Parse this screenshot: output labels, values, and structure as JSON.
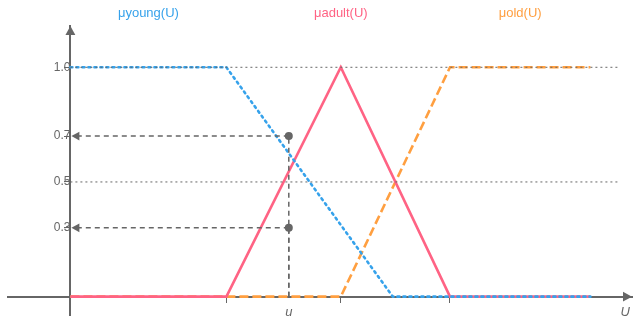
{
  "chart_data": {
    "type": "line",
    "xlabel": "U",
    "xlim": [
      -0.12,
      1.08
    ],
    "ylim": [
      -0.08,
      1.18
    ],
    "xticks": [
      0.3,
      0.52,
      0.73
    ],
    "yticks": [
      0.3,
      0.5,
      0.7,
      {
        "value": 1.0,
        "label": "1.0"
      }
    ],
    "tick_labels": "y",
    "grid": false,
    "series": [
      {
        "name": "μyoung(U)",
        "line_style": "dotted",
        "x": [
          0.0,
          0.3,
          0.62,
          1.0
        ],
        "values": [
          1.0,
          1.0,
          0.0,
          0.0
        ]
      },
      {
        "name": "μadult(U)",
        "line_style": "solid",
        "x": [
          0.0,
          0.3,
          0.52,
          0.73,
          1.0
        ],
        "values": [
          0.0,
          0.0,
          1.0,
          0.0,
          0.0
        ]
      },
      {
        "name": "μold(U)",
        "line_style": "dashed",
        "x": [
          0.0,
          0.52,
          0.73,
          1.0
        ],
        "values": [
          0.0,
          0.0,
          1.0,
          1.0
        ]
      }
    ],
    "annotations": [
      {
        "type": "hline",
        "y": 1.0
      },
      {
        "type": "hline",
        "y": 0.5
      },
      {
        "type": "point",
        "x": 0.42,
        "y": 0.7
      },
      {
        "type": "point",
        "x": 0.42,
        "y": 0.3
      },
      {
        "type": "text",
        "text": "u",
        "x": 0.42
      }
    ]
  }
}
